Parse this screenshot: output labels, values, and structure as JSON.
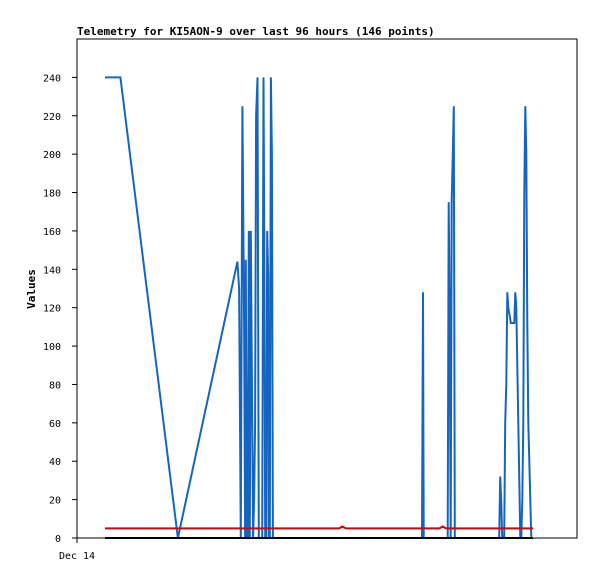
{
  "chart_data": {
    "type": "line",
    "title": "Telemetry for KI5AON-9 over last 96 hours (146 points)",
    "xlabel": "",
    "ylabel": "Values",
    "ylim": [
      0,
      260
    ],
    "y_ticks": [
      0,
      20,
      40,
      60,
      80,
      100,
      120,
      140,
      160,
      180,
      200,
      220,
      240
    ],
    "x_ticks": [
      "Dec 14"
    ],
    "grid": false,
    "legend": "none",
    "colors": {
      "blue": "#1565c0",
      "red": "#e00000",
      "black": "#000000",
      "frame": "#000000"
    },
    "series": [
      {
        "color": "#1565c0",
        "x": [
          0.0,
          4.6,
          21.8,
          39.6,
          40.1,
          40.6,
          41.1,
          41.6,
          41.9,
          42.1,
          42.4,
          42.7,
          43.0,
          43.3,
          43.6,
          44.3,
          44.6,
          44.9,
          45.2,
          45.6,
          46.0,
          46.5,
          47.0,
          47.4,
          47.6,
          47.9,
          48.2,
          48.5,
          48.8,
          49.0,
          49.3,
          49.6,
          49.9,
          50.2,
          50.5,
          50.8,
          51.1,
          76.6,
          76.9,
          77.2,
          77.7,
          78.2,
          78.6,
          78.9,
          79.2,
          79.5,
          79.8,
          80.1,
          80.4,
          80.7,
          81.0,
          81.3,
          81.7,
          82.2,
          82.7,
          83.2,
          83.5,
          83.8,
          84.2,
          84.7,
          85.2,
          85.6,
          94.5,
          94.8,
          95.1,
          95.3,
          95.6,
          102.2,
          102.5,
          102.8,
          103.1,
          103.4,
          103.7,
          104.0,
          104.3,
          104.6,
          104.9,
          105.2,
          105.5,
          105.8,
          117.6,
          117.9,
          118.2,
          118.5,
          118.8,
          119.1,
          119.4,
          119.7,
          120.0,
          120.3,
          120.6,
          121.4,
          121.8,
          122.1,
          122.4,
          122.7,
          123.0,
          124.2,
          124.5,
          124.8,
          125.1,
          125.4,
          125.7,
          126.0,
          126.3,
          126.6,
          126.9,
          127.2,
          127.5,
          127.8
        ],
        "y": [
          240,
          240,
          0,
          144,
          130,
          0,
          225,
          112,
          0,
          145,
          0,
          0,
          160,
          0,
          160,
          0,
          20,
          60,
          220,
          240,
          0,
          0,
          0,
          240,
          160,
          0,
          0,
          160,
          136,
          0,
          0,
          240,
          200,
          0,
          0,
          0,
          0,
          0,
          0,
          0,
          0,
          0,
          0,
          0,
          0,
          0,
          0,
          0,
          0,
          0,
          0,
          0,
          0,
          0,
          0,
          0,
          0,
          0,
          0,
          0,
          0,
          0,
          0,
          0,
          128,
          0,
          0,
          0,
          0,
          175,
          112,
          0,
          176,
          200,
          225,
          0,
          0,
          0,
          0,
          0,
          0,
          0,
          32,
          20,
          0,
          0,
          0,
          60,
          80,
          128,
          120,
          112,
          112,
          112,
          112,
          128,
          120,
          0,
          0,
          20,
          60,
          180,
          225,
          200,
          112,
          60,
          40,
          20,
          0,
          0
        ]
      },
      {
        "color": "#e00000",
        "x": [
          0.0,
          60.0,
          70.0,
          71.0,
          72.0,
          100.0,
          101.0,
          102.0,
          128.0
        ],
        "y": [
          5,
          5,
          5,
          6,
          5,
          5,
          6,
          5,
          5
        ]
      },
      {
        "color": "#000000",
        "x": [
          0.0,
          128.0
        ],
        "y": [
          0,
          0
        ]
      }
    ]
  }
}
